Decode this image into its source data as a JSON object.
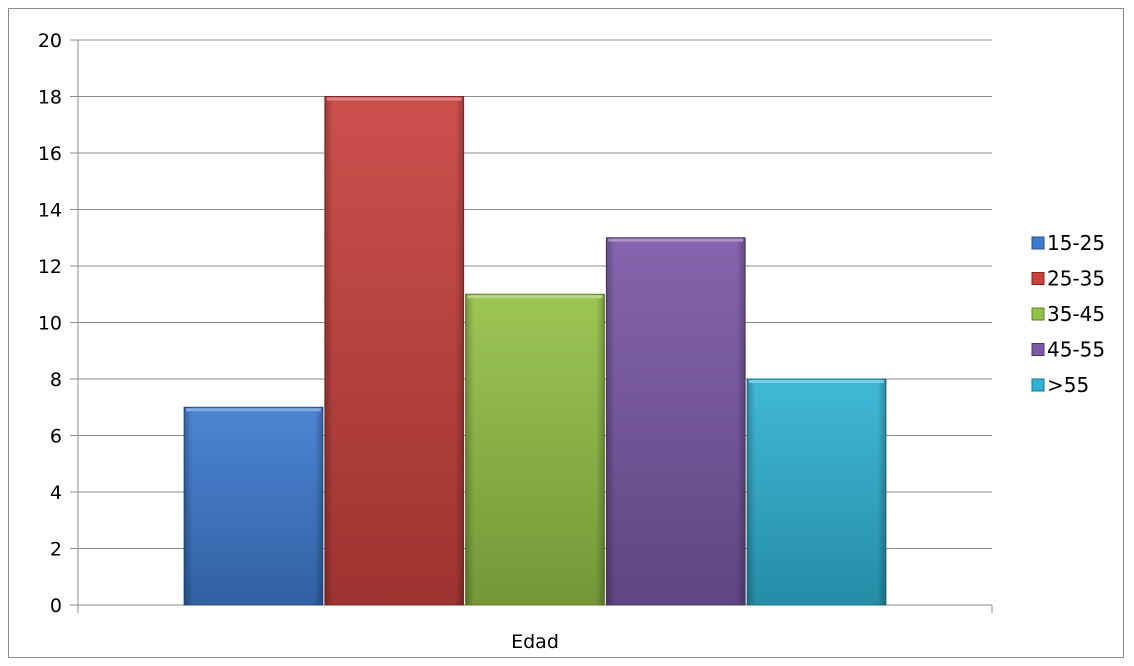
{
  "chart_data": {
    "type": "bar",
    "categories": [
      "Edad"
    ],
    "series": [
      {
        "name": "15-25",
        "values": [
          7
        ],
        "color": "#3d7bd0"
      },
      {
        "name": "25-35",
        "values": [
          18
        ],
        "color": "#c9413d"
      },
      {
        "name": "35-45",
        "values": [
          11
        ],
        "color": "#93c146"
      },
      {
        "name": "45-55",
        "values": [
          13
        ],
        "color": "#7a58a6"
      },
      {
        "name": ">55",
        "values": [
          8
        ],
        "color": "#2fb3d4"
      }
    ],
    "yticks": [
      "0",
      "2",
      "4",
      "6",
      "8",
      "10",
      "12",
      "14",
      "16",
      "18",
      "20"
    ],
    "ylim": [
      0,
      20
    ],
    "grid": true,
    "legend_position": "right"
  }
}
